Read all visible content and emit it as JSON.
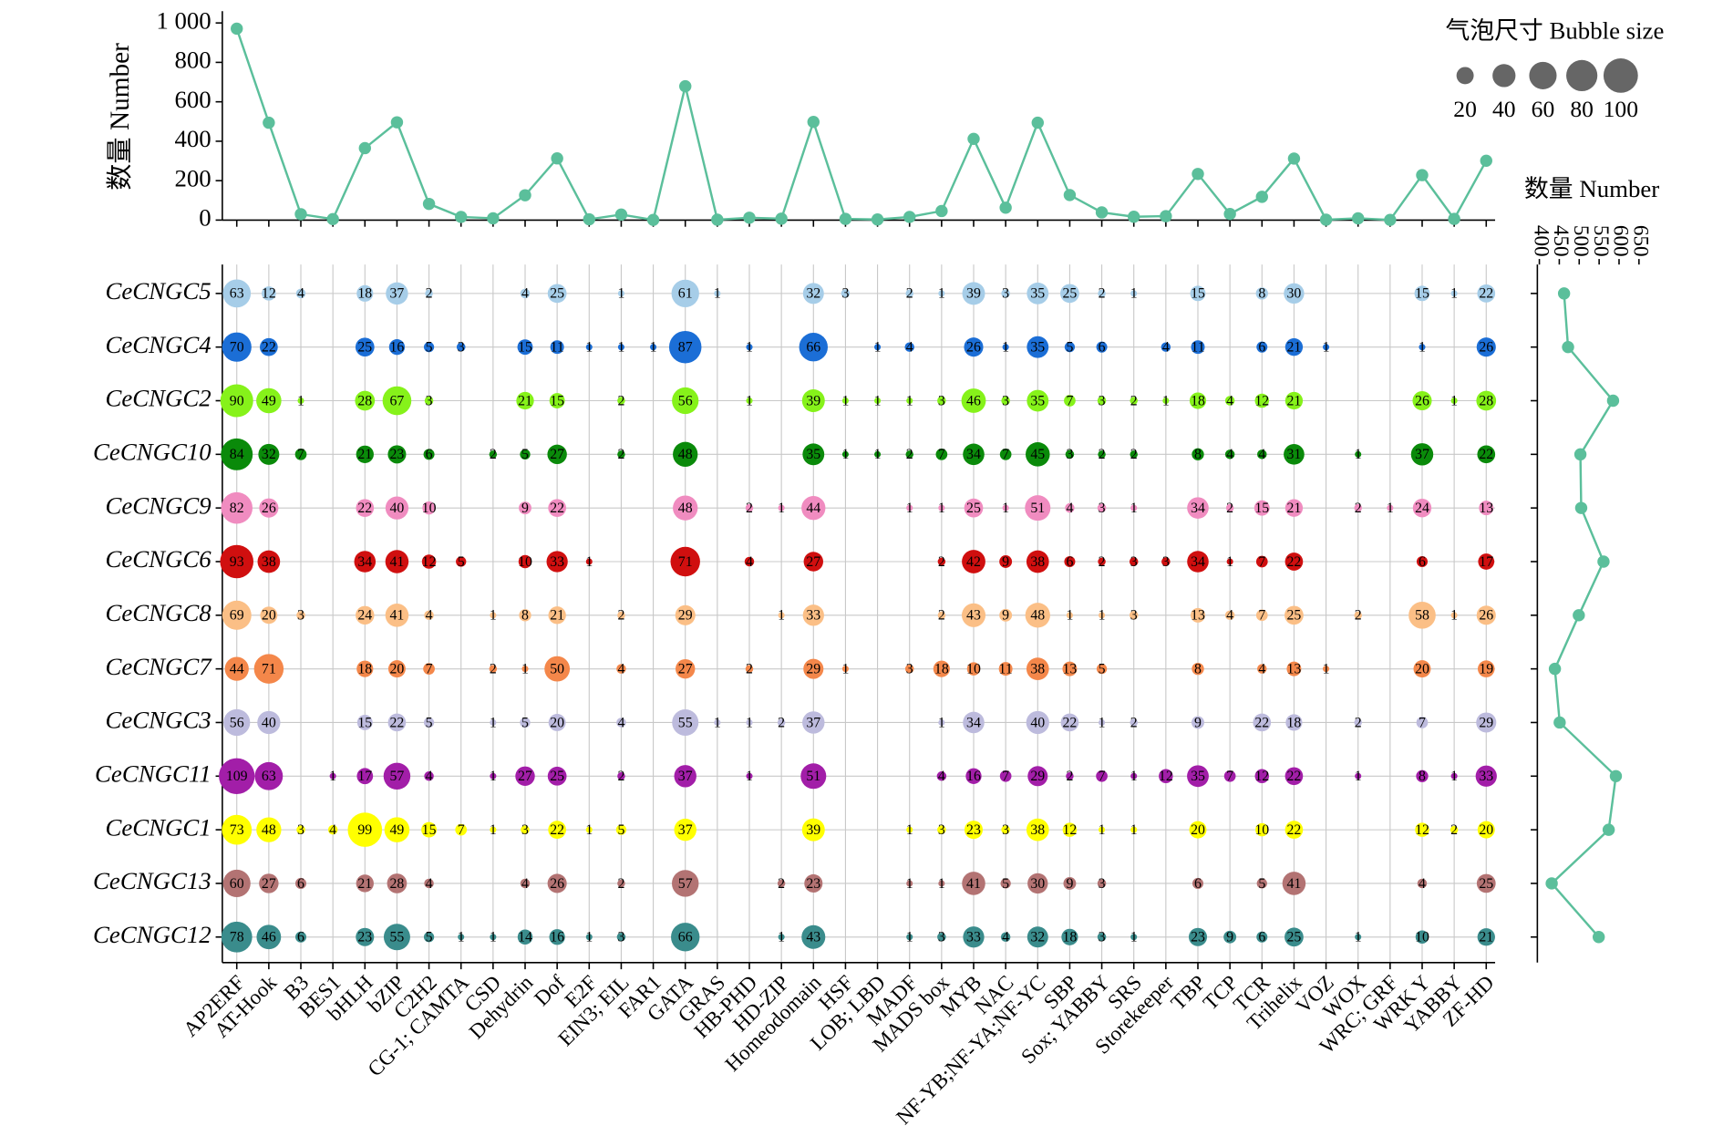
{
  "chart_data": [
    {
      "type": "line",
      "ylabel": "数量 Number",
      "color": "#5bbf9b",
      "values": [
        971,
        494,
        30,
        5,
        365,
        496,
        82,
        16,
        9,
        126,
        313,
        4,
        28,
        1,
        679,
        2,
        12,
        7,
        498,
        6,
        3,
        16,
        46,
        412,
        63,
        494,
        127,
        39,
        17,
        20,
        234,
        31,
        118,
        312,
        2,
        9,
        1,
        228,
        6,
        301
      ],
      "ylim": [
        0,
        1060
      ],
      "yticks": [
        0,
        200,
        400,
        600,
        800,
        {
          "value": 1000,
          "label": "1 000"
        }
      ]
    },
    {
      "type": "bubble",
      "categories": [
        "AP2ERF",
        "AT-Hook",
        "B3",
        "BES1",
        "bHLH",
        "bZIP",
        "C2H2",
        "CG-1; CAMTA",
        "CSD",
        "Dehydrin",
        "Dof",
        "E2F",
        "EIN3; EIL",
        "FAR1",
        "GATA",
        "GRAS",
        "HB-PHD",
        "HD-ZIP",
        "Homeodomain",
        "HSF",
        "LOB; LBD",
        "MADF",
        "MADS box",
        "MYB",
        "NAC",
        "NF-YB;NF-YA;NF-YC",
        "SBP",
        "Sox; YABBY",
        "SRS",
        "Storekeeper",
        "TBP",
        "TCP",
        "TCR",
        "Trihelix",
        "VOZ",
        "WOX",
        "WRC; GRF",
        "WRK Y",
        "YABBY",
        "ZF-HD"
      ],
      "series": [
        {
          "name": "CeCNGC5",
          "color": "#a6cde8",
          "values": [
            63,
            12,
            4,
            null,
            18,
            37,
            2,
            null,
            null,
            4,
            25,
            null,
            1,
            null,
            61,
            1,
            null,
            null,
            32,
            3,
            null,
            2,
            1,
            39,
            3,
            35,
            25,
            2,
            1,
            null,
            15,
            null,
            8,
            30,
            null,
            null,
            null,
            15,
            1,
            22
          ]
        },
        {
          "name": "CeCNGC4",
          "color": "#1b6ed6",
          "values": [
            70,
            22,
            null,
            null,
            25,
            16,
            5,
            3,
            null,
            15,
            11,
            1,
            1,
            1,
            87,
            null,
            1,
            null,
            66,
            null,
            1,
            4,
            null,
            26,
            1,
            35,
            5,
            6,
            null,
            4,
            11,
            null,
            6,
            21,
            1,
            null,
            null,
            1,
            null,
            26
          ]
        },
        {
          "name": "CeCNGC2",
          "color": "#86f21a",
          "values": [
            90,
            49,
            1,
            null,
            28,
            67,
            3,
            null,
            null,
            21,
            15,
            null,
            2,
            null,
            56,
            null,
            1,
            null,
            39,
            1,
            1,
            1,
            3,
            46,
            3,
            35,
            7,
            3,
            2,
            1,
            18,
            4,
            12,
            21,
            null,
            null,
            null,
            26,
            1,
            28
          ]
        },
        {
          "name": "CeCNGC10",
          "color": "#0a8a0a",
          "values": [
            84,
            32,
            7,
            null,
            21,
            23,
            6,
            null,
            2,
            5,
            27,
            null,
            2,
            null,
            48,
            null,
            null,
            null,
            35,
            1,
            1,
            2,
            7,
            34,
            7,
            45,
            3,
            2,
            2,
            null,
            8,
            4,
            4,
            31,
            null,
            1,
            null,
            37,
            null,
            22
          ]
        },
        {
          "name": "CeCNGC9",
          "color": "#f08cc0",
          "values": [
            82,
            26,
            null,
            null,
            22,
            40,
            10,
            null,
            null,
            9,
            22,
            null,
            null,
            null,
            48,
            null,
            2,
            1,
            44,
            null,
            null,
            1,
            1,
            25,
            1,
            51,
            4,
            3,
            1,
            null,
            34,
            2,
            15,
            21,
            null,
            2,
            1,
            24,
            null,
            13
          ]
        },
        {
          "name": "CeCNGC6",
          "color": "#d00f0f",
          "values": [
            93,
            38,
            null,
            null,
            34,
            41,
            12,
            5,
            null,
            10,
            33,
            1,
            null,
            null,
            71,
            null,
            4,
            null,
            27,
            null,
            null,
            null,
            2,
            42,
            9,
            38,
            6,
            2,
            3,
            3,
            34,
            1,
            7,
            22,
            null,
            null,
            null,
            6,
            null,
            17
          ]
        },
        {
          "name": "CeCNGC8",
          "color": "#fbbf86",
          "values": [
            69,
            20,
            3,
            null,
            24,
            41,
            4,
            null,
            1,
            8,
            21,
            null,
            2,
            null,
            29,
            null,
            null,
            1,
            33,
            null,
            null,
            null,
            2,
            43,
            9,
            48,
            1,
            1,
            3,
            null,
            13,
            4,
            7,
            25,
            null,
            2,
            null,
            58,
            1,
            26
          ]
        },
        {
          "name": "CeCNGC7",
          "color": "#f4874a",
          "values": [
            44,
            71,
            null,
            null,
            18,
            20,
            7,
            null,
            2,
            1,
            50,
            null,
            4,
            null,
            27,
            null,
            2,
            null,
            29,
            1,
            null,
            3,
            18,
            10,
            11,
            38,
            13,
            5,
            null,
            null,
            8,
            null,
            4,
            13,
            1,
            null,
            null,
            20,
            null,
            19
          ]
        },
        {
          "name": "CeCNGC3",
          "color": "#bdbbdd",
          "values": [
            56,
            40,
            null,
            null,
            15,
            22,
            5,
            null,
            1,
            5,
            20,
            null,
            4,
            null,
            55,
            1,
            1,
            2,
            37,
            null,
            null,
            null,
            1,
            34,
            null,
            40,
            22,
            1,
            2,
            null,
            9,
            null,
            22,
            18,
            null,
            2,
            null,
            7,
            null,
            29
          ]
        },
        {
          "name": "CeCNGC11",
          "color": "#a21ea8",
          "values": [
            109,
            63,
            null,
            1,
            17,
            57,
            4,
            null,
            1,
            27,
            25,
            null,
            2,
            null,
            37,
            null,
            1,
            null,
            51,
            null,
            null,
            null,
            4,
            16,
            7,
            29,
            2,
            7,
            1,
            12,
            35,
            7,
            12,
            22,
            null,
            1,
            null,
            8,
            1,
            33
          ]
        },
        {
          "name": "CeCNGC1",
          "color": "#ffff00",
          "values": [
            73,
            48,
            3,
            4,
            99,
            49,
            15,
            7,
            1,
            3,
            22,
            1,
            5,
            null,
            37,
            null,
            null,
            null,
            39,
            null,
            null,
            1,
            3,
            23,
            3,
            38,
            12,
            1,
            1,
            null,
            20,
            null,
            10,
            22,
            null,
            null,
            null,
            12,
            2,
            20
          ]
        },
        {
          "name": "CeCNGC13",
          "color": "#b37373",
          "values": [
            60,
            27,
            6,
            null,
            21,
            28,
            4,
            null,
            null,
            4,
            26,
            null,
            2,
            null,
            57,
            null,
            null,
            2,
            23,
            null,
            null,
            1,
            1,
            41,
            5,
            30,
            9,
            3,
            null,
            null,
            6,
            null,
            5,
            41,
            null,
            null,
            null,
            4,
            null,
            25
          ]
        },
        {
          "name": "CeCNGC12",
          "color": "#3a8c8c",
          "values": [
            78,
            46,
            6,
            null,
            23,
            55,
            5,
            1,
            1,
            14,
            16,
            1,
            3,
            null,
            66,
            null,
            null,
            1,
            43,
            null,
            null,
            1,
            3,
            33,
            4,
            32,
            18,
            3,
            1,
            null,
            23,
            9,
            6,
            25,
            null,
            1,
            null,
            10,
            null,
            21
          ]
        }
      ],
      "legend": {
        "title": "气泡尺寸 Bubble size",
        "sizes": [
          20,
          40,
          60,
          80,
          100
        ],
        "color": "#666666"
      },
      "legend_position": "upper right",
      "grid": true
    },
    {
      "type": "line",
      "orientation": "horizontal",
      "xlabel": "数量 Number",
      "color": "#5bbf9b",
      "values": [
        462,
        472,
        585,
        503,
        505,
        561,
        499,
        439,
        451,
        592,
        574,
        431,
        549
      ],
      "xlim": [
        395,
        660
      ],
      "xticks": [
        400,
        450,
        500,
        550,
        600,
        650
      ]
    }
  ]
}
